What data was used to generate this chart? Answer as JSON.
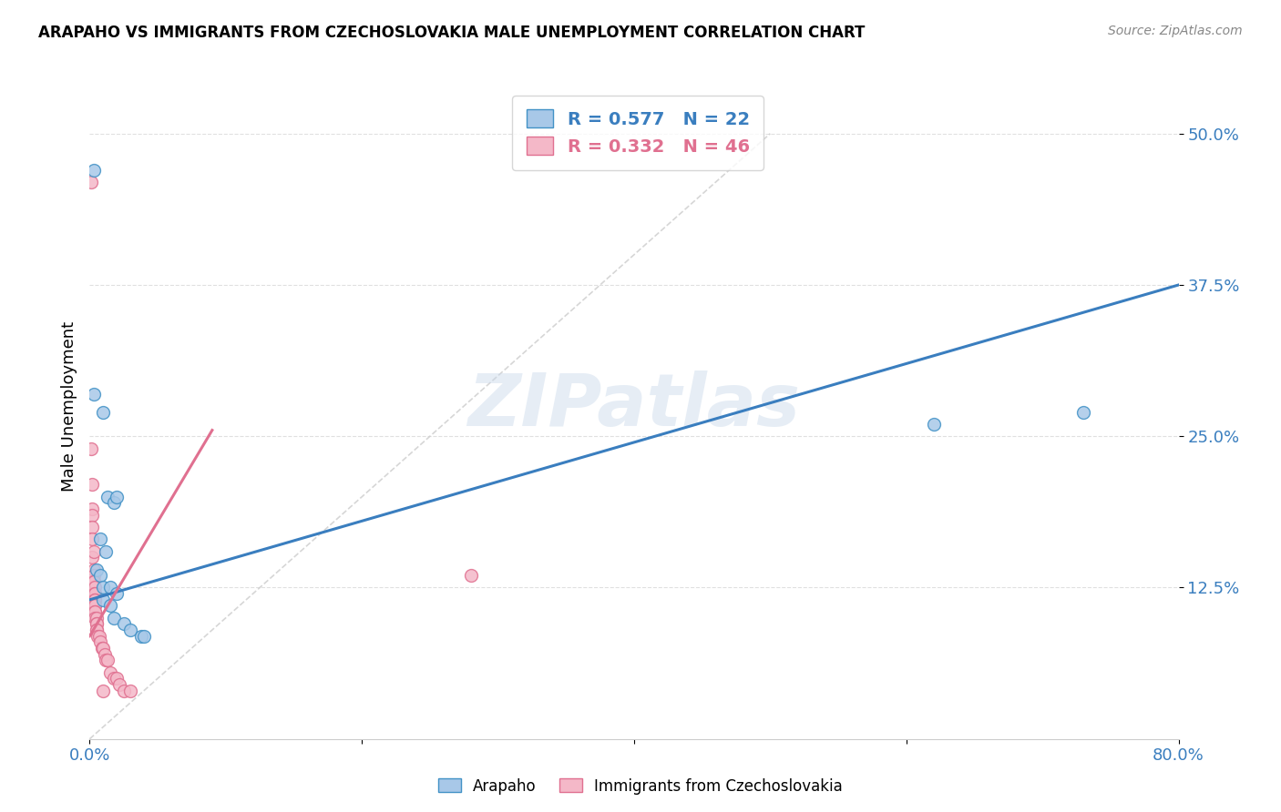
{
  "title": "ARAPAHO VS IMMIGRANTS FROM CZECHOSLOVAKIA MALE UNEMPLOYMENT CORRELATION CHART",
  "source": "Source: ZipAtlas.com",
  "ylabel": "Male Unemployment",
  "xlim": [
    0.0,
    0.8
  ],
  "ylim": [
    0.0,
    0.55
  ],
  "yticks": [
    0.125,
    0.25,
    0.375,
    0.5
  ],
  "ytick_labels": [
    "12.5%",
    "25.0%",
    "37.5%",
    "50.0%"
  ],
  "xticks": [
    0.0,
    0.2,
    0.4,
    0.6,
    0.8
  ],
  "xtick_labels": [
    "0.0%",
    "",
    "",
    "",
    "80.0%"
  ],
  "legend_r1": "R = 0.577   N = 22",
  "legend_r2": "R = 0.332   N = 46",
  "watermark": "ZIPatlas",
  "arapaho_scatter": [
    [
      0.003,
      0.47
    ],
    [
      0.003,
      0.285
    ],
    [
      0.01,
      0.27
    ],
    [
      0.013,
      0.2
    ],
    [
      0.018,
      0.195
    ],
    [
      0.02,
      0.2
    ],
    [
      0.008,
      0.165
    ],
    [
      0.012,
      0.155
    ],
    [
      0.005,
      0.14
    ],
    [
      0.008,
      0.135
    ],
    [
      0.01,
      0.125
    ],
    [
      0.015,
      0.125
    ],
    [
      0.02,
      0.12
    ],
    [
      0.01,
      0.115
    ],
    [
      0.015,
      0.11
    ],
    [
      0.018,
      0.1
    ],
    [
      0.025,
      0.095
    ],
    [
      0.03,
      0.09
    ],
    [
      0.038,
      0.085
    ],
    [
      0.04,
      0.085
    ],
    [
      0.62,
      0.26
    ],
    [
      0.73,
      0.27
    ]
  ],
  "czech_scatter": [
    [
      0.001,
      0.46
    ],
    [
      0.001,
      0.24
    ],
    [
      0.002,
      0.21
    ],
    [
      0.002,
      0.19
    ],
    [
      0.002,
      0.185
    ],
    [
      0.002,
      0.175
    ],
    [
      0.002,
      0.165
    ],
    [
      0.002,
      0.15
    ],
    [
      0.003,
      0.155
    ],
    [
      0.003,
      0.14
    ],
    [
      0.003,
      0.135
    ],
    [
      0.003,
      0.13
    ],
    [
      0.003,
      0.13
    ],
    [
      0.003,
      0.125
    ],
    [
      0.003,
      0.13
    ],
    [
      0.004,
      0.125
    ],
    [
      0.004,
      0.12
    ],
    [
      0.004,
      0.12
    ],
    [
      0.004,
      0.115
    ],
    [
      0.004,
      0.115
    ],
    [
      0.004,
      0.11
    ],
    [
      0.004,
      0.11
    ],
    [
      0.004,
      0.105
    ],
    [
      0.004,
      0.105
    ],
    [
      0.004,
      0.1
    ],
    [
      0.005,
      0.1
    ],
    [
      0.005,
      0.095
    ],
    [
      0.005,
      0.095
    ],
    [
      0.005,
      0.09
    ],
    [
      0.005,
      0.09
    ],
    [
      0.006,
      0.085
    ],
    [
      0.007,
      0.085
    ],
    [
      0.008,
      0.08
    ],
    [
      0.009,
      0.075
    ],
    [
      0.01,
      0.075
    ],
    [
      0.011,
      0.07
    ],
    [
      0.012,
      0.065
    ],
    [
      0.013,
      0.065
    ],
    [
      0.015,
      0.055
    ],
    [
      0.018,
      0.05
    ],
    [
      0.02,
      0.05
    ],
    [
      0.022,
      0.045
    ],
    [
      0.28,
      0.135
    ],
    [
      0.025,
      0.04
    ],
    [
      0.03,
      0.04
    ],
    [
      0.01,
      0.04
    ]
  ],
  "arapaho_color": "#a8c8e8",
  "arapaho_edge_color": "#4292c6",
  "czech_color": "#f4b8c8",
  "czech_edge_color": "#e07090",
  "blue_line_color": "#3a7ebf",
  "pink_line_color": "#e07090",
  "diagonal_line_color": "#cccccc",
  "tick_color": "#3a7ebf",
  "background_color": "#ffffff",
  "grid_color": "#e0e0e0",
  "blue_line_x": [
    0.0,
    0.8
  ],
  "blue_line_y": [
    0.115,
    0.375
  ],
  "pink_line_x": [
    0.0,
    0.09
  ],
  "pink_line_y": [
    0.085,
    0.255
  ]
}
